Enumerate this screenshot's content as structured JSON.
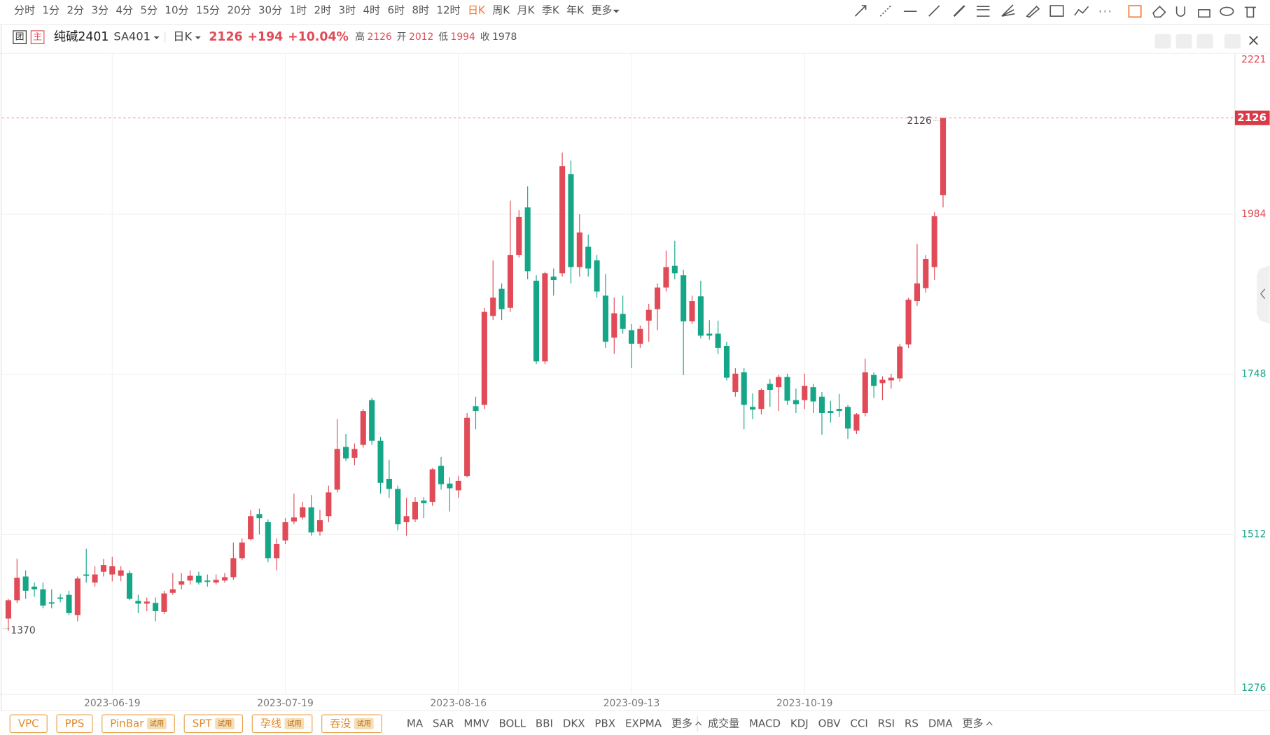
{
  "toolbar": {
    "periods": [
      {
        "label": "分时"
      },
      {
        "label": "1分"
      },
      {
        "label": "2分"
      },
      {
        "label": "3分"
      },
      {
        "label": "4分"
      },
      {
        "label": "5分"
      },
      {
        "label": "10分"
      },
      {
        "label": "15分"
      },
      {
        "label": "20分"
      },
      {
        "label": "30分"
      },
      {
        "label": "1时"
      },
      {
        "label": "2时"
      },
      {
        "label": "3时"
      },
      {
        "label": "4时"
      },
      {
        "label": "6时"
      },
      {
        "label": "8时"
      },
      {
        "label": "12时"
      },
      {
        "label": "日K",
        "active": true
      },
      {
        "label": "周K"
      },
      {
        "label": "月K"
      },
      {
        "label": "季K"
      },
      {
        "label": "年K"
      },
      {
        "label": "更多"
      }
    ],
    "active_color": "#f5722b"
  },
  "header": {
    "icons": [
      "团",
      "主"
    ],
    "symbol": "纯碱2401",
    "code": "SA401",
    "period": "日K",
    "price": "2126",
    "change": "+194",
    "change_pct": "+10.04%",
    "stats": [
      {
        "label": "高",
        "value": "2126"
      },
      {
        "label": "开",
        "value": "2012"
      },
      {
        "label": "低",
        "value": "1994"
      },
      {
        "label": "收",
        "value": "1978"
      }
    ]
  },
  "chart_data": {
    "type": "candlestick",
    "categories": [
      null,
      null,
      null,
      null,
      null,
      null,
      null,
      null,
      null,
      null,
      null,
      null,
      "2023-06-19",
      null,
      null,
      null,
      null,
      null,
      null,
      null,
      null,
      null,
      null,
      null,
      null,
      null,
      null,
      null,
      null,
      null,
      null,
      null,
      "2023-07-19",
      null,
      null,
      null,
      null,
      null,
      null,
      null,
      null,
      null,
      null,
      null,
      null,
      null,
      null,
      null,
      null,
      null,
      null,
      null,
      "2023-08-16",
      null,
      null,
      null,
      null,
      null,
      null,
      null,
      null,
      null,
      null,
      null,
      null,
      null,
      null,
      null,
      null,
      null,
      null,
      null,
      "2023-09-13",
      null,
      null,
      null,
      null,
      null,
      null,
      null,
      null,
      null,
      null,
      null,
      null,
      null,
      null,
      null,
      null,
      null,
      null,
      null,
      "2023-10-19",
      null,
      null,
      null,
      null,
      null,
      null,
      null,
      null,
      null,
      null,
      null,
      null,
      null,
      null,
      null,
      null
    ],
    "open": [
      1388,
      1415,
      1450,
      1435,
      1431,
      1412,
      1419,
      1423,
      1393,
      1453,
      1441,
      1457,
      1453,
      1451,
      1455,
      1414,
      1410,
      1411,
      1398,
      1426,
      1438,
      1444,
      1451,
      1444,
      1441,
      1444,
      1449,
      1477,
      1505,
      1542,
      1530,
      1477,
      1503,
      1531,
      1537,
      1552,
      1516,
      1539,
      1578,
      1641,
      1625,
      1644,
      1710,
      1650,
      1594,
      1579,
      1530,
      1534,
      1562,
      1560,
      1613,
      1587,
      1577,
      1598,
      1701,
      1703,
      1834,
      1874,
      1846,
      1924,
      1994,
      1886,
      1767,
      1892,
      1897,
      2043,
      1906,
      1936,
      1916,
      1864,
      1802,
      1837,
      1813,
      1793,
      1827,
      1844,
      1876,
      1908,
      1894,
      1826,
      1863,
      1808,
      1808,
      1790,
      1722,
      1751,
      1700,
      1697,
      1734,
      1729,
      1744,
      1710,
      1710,
      1729,
      1715,
      1694,
      1697,
      1700,
      1665,
      1691,
      1747,
      1735,
      1739,
      1742,
      1792,
      1856,
      1875,
      1906,
      2012
    ],
    "high": [
      1417,
      1476,
      1459,
      1441,
      1441,
      1431,
      1424,
      1429,
      1450,
      1491,
      1465,
      1476,
      1479,
      1465,
      1459,
      1423,
      1419,
      1419,
      1429,
      1455,
      1455,
      1459,
      1457,
      1453,
      1453,
      1455,
      1500,
      1506,
      1548,
      1550,
      1534,
      1506,
      1536,
      1572,
      1560,
      1570,
      1548,
      1584,
      1682,
      1660,
      1646,
      1697,
      1713,
      1656,
      1622,
      1584,
      1566,
      1567,
      1567,
      1610,
      1626,
      1596,
      1598,
      1691,
      1715,
      1846,
      1916,
      1882,
      2004,
      1990,
      2025,
      1894,
      1899,
      1904,
      2075,
      2063,
      1984,
      1954,
      1924,
      1896,
      1861,
      1864,
      1822,
      1820,
      1852,
      1882,
      1930,
      1945,
      1902,
      1864,
      1886,
      1828,
      1827,
      1796,
      1757,
      1757,
      1720,
      1727,
      1741,
      1747,
      1749,
      1727,
      1749,
      1734,
      1722,
      1709,
      1719,
      1703,
      1691,
      1771,
      1751,
      1745,
      1749,
      1793,
      1861,
      1940,
      1924,
      1987,
      2126
    ],
    "low": [
      1370,
      1411,
      1417,
      1420,
      1403,
      1403,
      1412,
      1393,
      1384,
      1441,
      1435,
      1450,
      1443,
      1443,
      1415,
      1396,
      1399,
      1384,
      1395,
      1423,
      1431,
      1438,
      1438,
      1435,
      1438,
      1441,
      1445,
      1474,
      1503,
      1512,
      1471,
      1459,
      1498,
      1527,
      1534,
      1510,
      1510,
      1530,
      1574,
      1620,
      1614,
      1640,
      1644,
      1572,
      1566,
      1518,
      1510,
      1530,
      1536,
      1554,
      1578,
      1546,
      1566,
      1596,
      1667,
      1697,
      1828,
      1828,
      1840,
      1920,
      1888,
      1763,
      1763,
      1864,
      1892,
      1882,
      1892,
      1892,
      1861,
      1787,
      1778,
      1808,
      1757,
      1787,
      1796,
      1813,
      1870,
      1888,
      1747,
      1822,
      1801,
      1799,
      1778,
      1739,
      1715,
      1667,
      1682,
      1689,
      1700,
      1694,
      1703,
      1691,
      1697,
      1691,
      1659,
      1677,
      1685,
      1653,
      1660,
      1686,
      1713,
      1710,
      1727,
      1737,
      1787,
      1849,
      1868,
      1887,
      1994
    ],
    "close": [
      1415,
      1448,
      1429,
      1431,
      1407,
      1410,
      1417,
      1396,
      1447,
      1451,
      1453,
      1467,
      1465,
      1459,
      1417,
      1410,
      1413,
      1399,
      1425,
      1431,
      1443,
      1451,
      1441,
      1442,
      1445,
      1449,
      1477,
      1500,
      1539,
      1536,
      1477,
      1498,
      1530,
      1537,
      1552,
      1515,
      1533,
      1574,
      1638,
      1624,
      1638,
      1694,
      1650,
      1588,
      1579,
      1527,
      1539,
      1560,
      1558,
      1608,
      1586,
      1580,
      1591,
      1684,
      1694,
      1840,
      1861,
      1844,
      1924,
      1980,
      1900,
      1767,
      1897,
      1887,
      2055,
      1906,
      1957,
      1904,
      1870,
      1796,
      1838,
      1815,
      1793,
      1815,
      1843,
      1876,
      1906,
      1897,
      1826,
      1856,
      1805,
      1805,
      1787,
      1743,
      1749,
      1703,
      1696,
      1725,
      1725,
      1744,
      1709,
      1704,
      1731,
      1708,
      1691,
      1691,
      1694,
      1668,
      1689,
      1751,
      1731,
      1740,
      1743,
      1789,
      1858,
      1882,
      1918,
      1981,
      2126
    ],
    "ylim": [
      1276,
      2221
    ],
    "yticks": [
      1276,
      1512,
      1748,
      1984,
      2221
    ],
    "last_price": 2126,
    "max_label": 2126,
    "min_label": 1370,
    "grid": true,
    "up_color": "#e04b57",
    "down_color": "#15a687"
  },
  "indicators": {
    "patterns": [
      {
        "label": "VPC"
      },
      {
        "label": "PPS"
      },
      {
        "label": "PinBar",
        "badge": "试用"
      },
      {
        "label": "SPT",
        "badge": "试用"
      },
      {
        "label": "孕线",
        "badge": "试用"
      },
      {
        "label": "吞没",
        "badge": "试用"
      }
    ],
    "main": [
      "MA",
      "SAR",
      "MMV",
      "BOLL",
      "BBI",
      "DKX",
      "PBX",
      "EXPMA",
      "更多"
    ],
    "sub": [
      "成交量",
      "MACD",
      "KDJ",
      "OBV",
      "CCI",
      "RSI",
      "RS",
      "DMA",
      "更多"
    ]
  }
}
